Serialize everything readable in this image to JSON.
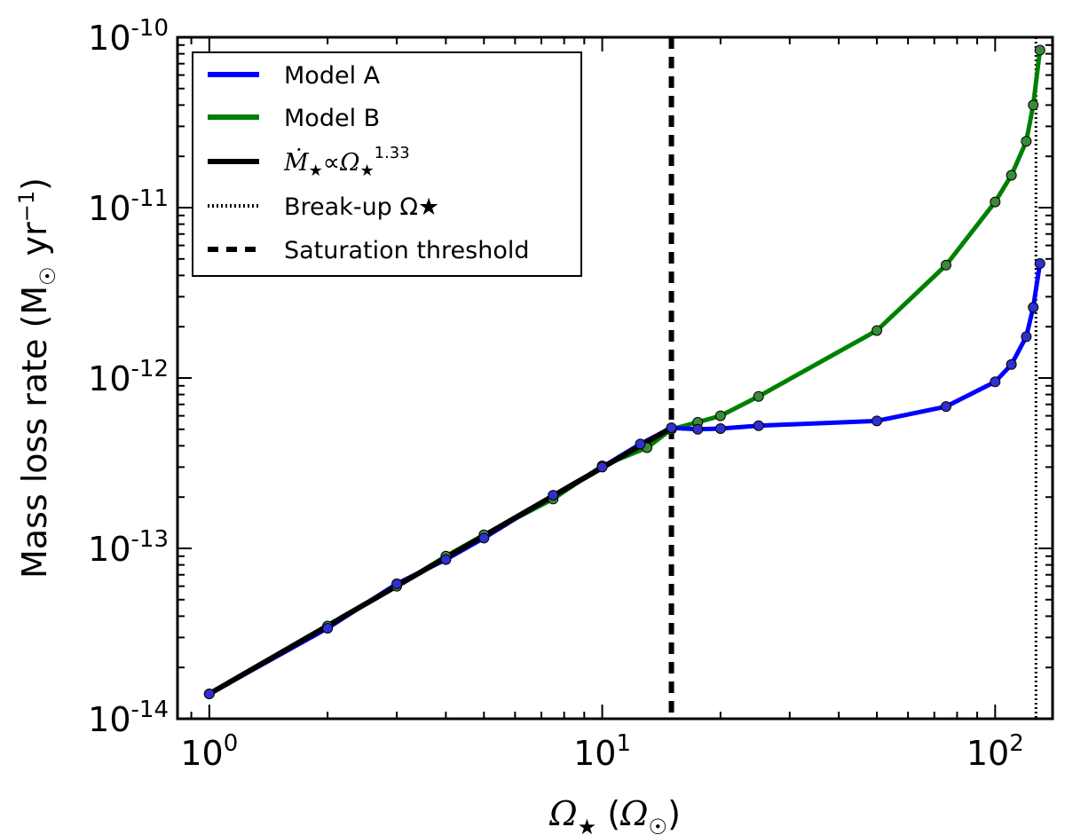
{
  "chart_data": {
    "type": "line",
    "xscale": "log",
    "yscale": "log",
    "xlim": [
      0.83,
      140
    ],
    "ylim": [
      1e-14,
      1e-10
    ],
    "grid": false,
    "legend_position": "top-left",
    "xlabel": "Ω★ (Ω☉)",
    "ylabel": "Mass loss rate (M☉ yr⁻¹)",
    "x_ticks": [
      {
        "value": 1,
        "label": "10",
        "exp": "0"
      },
      {
        "value": 10,
        "label": "10",
        "exp": "1"
      },
      {
        "value": 100,
        "label": "10",
        "exp": "2"
      }
    ],
    "y_ticks": [
      {
        "value": 1e-14,
        "label": "10",
        "exp": "-14"
      },
      {
        "value": 1e-13,
        "label": "10",
        "exp": "-13"
      },
      {
        "value": 1e-12,
        "label": "10",
        "exp": "-12"
      },
      {
        "value": 1e-11,
        "label": "10",
        "exp": "-11"
      },
      {
        "value": 1e-10,
        "label": "10",
        "exp": "-10"
      }
    ],
    "series": [
      {
        "name": "Model A",
        "color": "#0000ff",
        "marker_fill": "#3030cc",
        "x": [
          1,
          2,
          3,
          4,
          5,
          7.5,
          10,
          12.5,
          15,
          17.5,
          20,
          25,
          50,
          75,
          100,
          110,
          120,
          125,
          130
        ],
        "y": [
          1.4e-14,
          3.4e-14,
          6.2e-14,
          8.6e-14,
          1.15e-13,
          2.05e-13,
          3e-13,
          4.1e-13,
          5.1e-13,
          5e-13,
          5.05e-13,
          5.25e-13,
          5.6e-13,
          6.8e-13,
          9.5e-13,
          1.2e-12,
          1.75e-12,
          2.6e-12,
          4.7e-12
        ]
      },
      {
        "name": "Model B",
        "color": "#008000",
        "marker_fill": "#3a8a3a",
        "x": [
          1,
          2,
          3,
          4,
          5,
          7.5,
          10,
          13,
          15,
          17.5,
          20,
          25,
          50,
          75,
          100,
          110,
          120,
          125,
          130
        ],
        "y": [
          1.4e-14,
          3.5e-14,
          6e-14,
          9e-14,
          1.2e-13,
          1.95e-13,
          3.05e-13,
          3.9e-13,
          5e-13,
          5.5e-13,
          6e-13,
          7.8e-13,
          1.9e-12,
          4.6e-12,
          1.08e-11,
          1.55e-11,
          2.45e-11,
          4e-11,
          8.4e-11
        ]
      },
      {
        "name": "Ṁ★∝Ω★^1.33",
        "color": "#000000",
        "style": "solid",
        "x": [
          1,
          15
        ],
        "y": [
          1.4e-14,
          5.1e-13
        ]
      }
    ],
    "reference_lines": [
      {
        "name": "Break-up Ω★",
        "orientation": "vertical",
        "x": 127,
        "style": "dotted",
        "color": "#000000"
      },
      {
        "name": "Saturation threshold",
        "orientation": "vertical",
        "x": 15,
        "style": "dashed",
        "color": "#000000"
      }
    ],
    "legend": [
      {
        "label": "Model A",
        "color": "#0000ff",
        "style": "solid"
      },
      {
        "label": "Model B",
        "color": "#008000",
        "style": "solid"
      },
      {
        "label": "Ṁ★∝Ω★^1.33",
        "color": "#000000",
        "style": "solid"
      },
      {
        "label": "Break-up Ω★",
        "color": "#000000",
        "style": "dotted"
      },
      {
        "label": "Saturation threshold",
        "color": "#000000",
        "style": "dashed"
      }
    ]
  }
}
